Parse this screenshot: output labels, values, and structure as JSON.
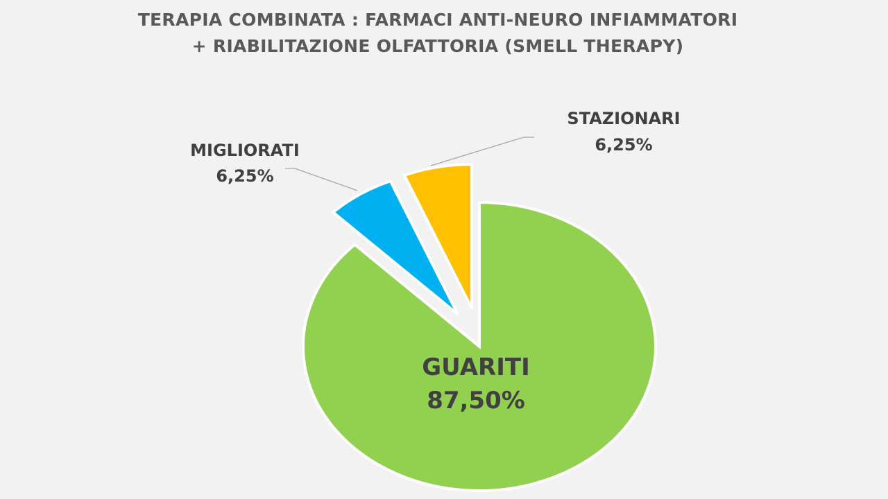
{
  "chart_data": {
    "type": "pie",
    "title_lines": [
      "TERAPIA COMBINATA : FARMACI ANTI-NEURO INFIAMMATORI",
      "+ RIABILITAZIONE OLFATTORIA (SMELL  THERAPY)"
    ],
    "slices": [
      {
        "name": "GUARITI",
        "value": 87.5,
        "label": "87,50%",
        "color": "#92d050",
        "exploded": false
      },
      {
        "name": "MIGLIORATI",
        "value": 6.25,
        "label": "6,25%",
        "color": "#00b0f0",
        "exploded": true
      },
      {
        "name": "STAZIONARI",
        "value": 6.25,
        "label": "6,25%",
        "color": "#ffc000",
        "exploded": true
      }
    ],
    "leader_lines": true,
    "legend": "none"
  }
}
